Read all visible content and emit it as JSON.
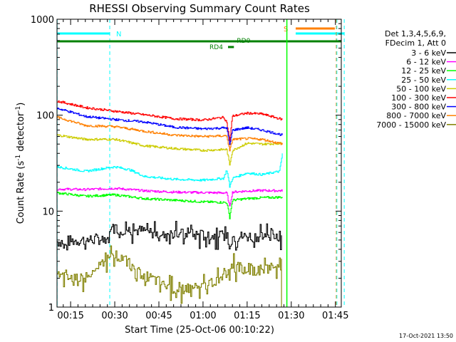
{
  "chart_data": {
    "type": "line",
    "title": "RHESSI Observing Summary Count Rates",
    "xlabel": "Start Time (25-Oct-06 00:10:22)",
    "ylabel_main": "Count Rate (s",
    "ylabel_sup1": "-1",
    "ylabel_mid": " detector",
    "ylabel_sup2": "-1",
    "ylabel_end": ")",
    "yscale": "log",
    "xlim_min": [
      10.37,
      107
    ],
    "ylim": [
      1,
      1000
    ],
    "x_ticks": [
      {
        "v": 15,
        "label": "00:15"
      },
      {
        "v": 30,
        "label": "00:30"
      },
      {
        "v": 45,
        "label": "00:45"
      },
      {
        "v": 60,
        "label": "01:00"
      },
      {
        "v": 75,
        "label": "01:15"
      },
      {
        "v": 90,
        "label": "01:30"
      },
      {
        "v": 105,
        "label": "01:45"
      }
    ],
    "y_ticks": [
      {
        "v": 1,
        "label": "1"
      },
      {
        "v": 10,
        "label": "10"
      },
      {
        "v": 100,
        "label": "100"
      },
      {
        "v": 1000,
        "label": "1000"
      }
    ],
    "legend_header": [
      "Det 1,3,4,5,6,9,",
      "FDecim 1, Att 0"
    ],
    "series": [
      {
        "name": "3 - 6 keV",
        "color": "#000000",
        "x": [
          10.4,
          20,
          28,
          29,
          40,
          50,
          60,
          68,
          69,
          70,
          80,
          87
        ],
        "y": [
          4.8,
          5.0,
          5.2,
          6.6,
          6.2,
          5.8,
          5.6,
          5.4,
          4.6,
          5.4,
          5.5,
          5.6
        ]
      },
      {
        "name": "6 - 12 keV",
        "color": "#ff00ff",
        "x": [
          10.4,
          20,
          30,
          40,
          50,
          60,
          68,
          69,
          70,
          75,
          80,
          87
        ],
        "y": [
          17,
          16.8,
          17.3,
          16.3,
          15.8,
          15.6,
          15.5,
          11,
          15.8,
          16.2,
          16.4,
          16.3
        ]
      },
      {
        "name": "12 - 25 keV",
        "color": "#00ff00",
        "x": [
          10.4,
          20,
          30,
          40,
          50,
          60,
          68,
          69,
          70,
          75,
          80,
          87
        ],
        "y": [
          15.5,
          14.3,
          14.8,
          13.5,
          13,
          12.5,
          12.3,
          8.5,
          13,
          13.5,
          13.8,
          14
        ]
      },
      {
        "name": "25 - 50 keV",
        "color": "#00ffff",
        "x": [
          10.4,
          20,
          30,
          35,
          40,
          50,
          60,
          67,
          68,
          69,
          70,
          75,
          80,
          86,
          87
        ],
        "y": [
          29,
          26,
          29,
          27,
          23,
          21.5,
          21,
          22,
          27,
          18,
          22,
          25,
          24,
          26,
          40
        ]
      },
      {
        "name": "50 - 100 keV",
        "color": "#cccc00",
        "x": [
          10.4,
          20,
          30,
          40,
          50,
          60,
          68,
          69,
          70,
          75,
          80,
          87
        ],
        "y": [
          62,
          56,
          56,
          48,
          45,
          43,
          44,
          30,
          43,
          51,
          50,
          51
        ]
      },
      {
        "name": "100 - 300 keV",
        "color": "#ff0000",
        "x": [
          10.4,
          20,
          30,
          40,
          50,
          60,
          67,
          68,
          69,
          70,
          75,
          80,
          87
        ],
        "y": [
          140,
          120,
          110,
          101,
          92,
          89,
          95,
          85,
          50,
          98,
          105,
          103,
          90
        ]
      },
      {
        "name": "300 - 800 keV",
        "color": "#0000ff",
        "x": [
          10.4,
          20,
          30,
          40,
          50,
          60,
          68,
          69,
          70,
          75,
          80,
          87
        ],
        "y": [
          118,
          97,
          90,
          85,
          75,
          72,
          74,
          48,
          70,
          74,
          70,
          62
        ]
      },
      {
        "name": "800 - 7000 keV",
        "color": "#ff8000",
        "x": [
          10.4,
          20,
          30,
          40,
          50,
          60,
          68,
          69,
          70,
          75,
          80,
          87
        ],
        "y": [
          95,
          78,
          76,
          68,
          62,
          60,
          61,
          42,
          56,
          57,
          56,
          50
        ]
      },
      {
        "name": "7000 - 15000 keV",
        "color": "#808000",
        "x": [
          10.4,
          20,
          30,
          40,
          50,
          60,
          68,
          69,
          70,
          80,
          87
        ],
        "y": [
          2.2,
          2.0,
          3.5,
          2.1,
          1.5,
          1.6,
          2.2,
          2.5,
          2.6,
          2.4,
          2.8
        ]
      }
    ],
    "annotations": {
      "n_label": "N",
      "s_label": "S",
      "rd0_label": "RD0",
      "rd4_label": "RD4",
      "n_lines": [
        10.4,
        28.3
      ],
      "s_lines": [
        105.5,
        108
      ]
    },
    "timestamp": "17-Oct-2021 13:50"
  }
}
